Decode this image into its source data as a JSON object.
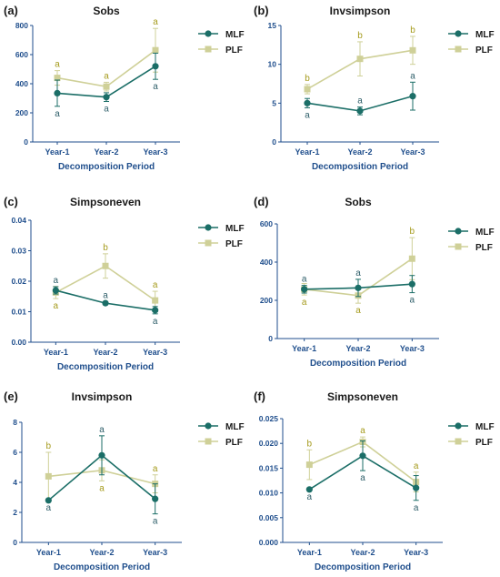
{
  "colors": {
    "MLF": "#1b6e67",
    "PLF": "#cfd098",
    "sig_MLF": "#2f5f6a",
    "sig_PLF": "#a59b1d",
    "axis": "#1f4e8c"
  },
  "chart_data": [
    {
      "panel": "(a)",
      "type": "line",
      "title": "Sobs",
      "categories": [
        "Year-1",
        "Year-2",
        "Year-3"
      ],
      "xlabel": "Decomposition Period",
      "ylim": [
        0,
        800
      ],
      "yticks": [
        "0",
        "200",
        "400",
        "600",
        "800"
      ],
      "legend": "top-right",
      "series": [
        {
          "name": "MLF",
          "values": [
            335,
            308,
            520
          ],
          "err": [
            90,
            30,
            90
          ],
          "letters": [
            "a",
            "a",
            "a"
          ],
          "letter_pos": [
            "below",
            "below",
            "below"
          ]
        },
        {
          "name": "PLF",
          "values": [
            440,
            380,
            630
          ],
          "err": [
            50,
            30,
            150
          ],
          "letters": [
            "a",
            "a",
            "a"
          ],
          "letter_pos": [
            "above",
            "above",
            "above"
          ]
        }
      ]
    },
    {
      "panel": "(b)",
      "type": "line",
      "title": "Invsimpson",
      "categories": [
        "Year-1",
        "Year-2",
        "Year-3"
      ],
      "xlabel": "Decomposition Period",
      "ylim": [
        0,
        15
      ],
      "yticks": [
        "0",
        "5",
        "10",
        "15"
      ],
      "legend": "top-right",
      "series": [
        {
          "name": "MLF",
          "values": [
            5.0,
            4.0,
            5.9
          ],
          "err": [
            0.6,
            0.5,
            1.8
          ],
          "letters": [
            "a",
            "a",
            "a"
          ],
          "letter_pos": [
            "below",
            "above",
            "above"
          ]
        },
        {
          "name": "PLF",
          "values": [
            6.8,
            10.7,
            11.8
          ],
          "err": [
            0.6,
            2.2,
            1.8
          ],
          "letters": [
            "b",
            "b",
            "b"
          ],
          "letter_pos": [
            "above",
            "above",
            "above"
          ]
        }
      ]
    },
    {
      "panel": "(c)",
      "type": "line",
      "title": "Simpsoneven",
      "categories": [
        "Year-1",
        "Year-2",
        "Year-3"
      ],
      "xlabel": "Decomposition Period",
      "ylim": [
        0,
        0.04
      ],
      "yticks": [
        "0.00",
        "0.01",
        "0.02",
        "0.03",
        "0.04"
      ],
      "legend": "top-right",
      "series": [
        {
          "name": "MLF",
          "values": [
            0.017,
            0.0128,
            0.0105
          ],
          "err": [
            0.0012,
            0.0005,
            0.0012
          ],
          "letters": [
            "a",
            "a",
            "a"
          ],
          "letter_pos": [
            "above",
            "above",
            "below"
          ]
        },
        {
          "name": "PLF",
          "values": [
            0.0163,
            0.025,
            0.0137
          ],
          "err": [
            0.002,
            0.004,
            0.003
          ],
          "letters": [
            "a",
            "b",
            "a"
          ],
          "letter_pos": [
            "below",
            "above",
            "above"
          ]
        }
      ]
    },
    {
      "panel": "(d)",
      "type": "line",
      "title": "Sobs",
      "categories": [
        "Year-1",
        "Year-2",
        "Year-3"
      ],
      "xlabel": "Decomposition Period",
      "ylim": [
        0,
        600
      ],
      "yticks": [
        "0",
        "200",
        "400",
        "600"
      ],
      "legend": "top-right",
      "series": [
        {
          "name": "MLF",
          "values": [
            258,
            265,
            285
          ],
          "err": [
            20,
            45,
            45
          ],
          "letters": [
            "a",
            "a",
            "a"
          ],
          "letter_pos": [
            "above",
            "above",
            "below"
          ]
        },
        {
          "name": "PLF",
          "values": [
            258,
            225,
            418
          ],
          "err": [
            30,
            40,
            110
          ],
          "letters": [
            "a",
            "a",
            "b"
          ],
          "letter_pos": [
            "below",
            "below",
            "above"
          ]
        }
      ]
    },
    {
      "panel": "(e)",
      "type": "line",
      "title": "Invsimpson",
      "categories": [
        "Year-1",
        "Year-2",
        "Year-3"
      ],
      "xlabel": "Decomposition Period",
      "ylim": [
        0,
        8
      ],
      "yticks": [
        "0",
        "2",
        "4",
        "6",
        "8"
      ],
      "legend": "top-right",
      "series": [
        {
          "name": "MLF",
          "values": [
            2.8,
            5.8,
            2.9
          ],
          "err": [
            0.0,
            1.3,
            1.0
          ],
          "letters": [
            "a",
            "a",
            "a"
          ],
          "letter_pos": [
            "below",
            "above",
            "below"
          ]
        },
        {
          "name": "PLF",
          "values": [
            4.4,
            4.8,
            3.9
          ],
          "err": [
            1.6,
            0.7,
            0.6
          ],
          "letters": [
            "b",
            "a",
            "a"
          ],
          "letter_pos": [
            "above",
            "below",
            "above"
          ]
        }
      ]
    },
    {
      "panel": "(f)",
      "type": "line",
      "title": "Simpsoneven",
      "categories": [
        "Year-1",
        "Year-2",
        "Year-3"
      ],
      "xlabel": "Decomposition Period",
      "ylim": [
        0,
        0.025
      ],
      "yticks": [
        "0.000",
        "0.005",
        "0.010",
        "0.015",
        "0.020",
        "0.025"
      ],
      "legend": "top-right",
      "series": [
        {
          "name": "MLF",
          "values": [
            0.0107,
            0.0175,
            0.011
          ],
          "err": [
            0.0,
            0.003,
            0.0025
          ],
          "letters": [
            "a",
            "a",
            "a"
          ],
          "letter_pos": [
            "below",
            "below",
            "below"
          ]
        },
        {
          "name": "PLF",
          "values": [
            0.0157,
            0.0203,
            0.0122
          ],
          "err": [
            0.003,
            0.001,
            0.002
          ],
          "letters": [
            "b",
            "a",
            "a"
          ],
          "letter_pos": [
            "above",
            "above",
            "above"
          ]
        }
      ]
    }
  ]
}
